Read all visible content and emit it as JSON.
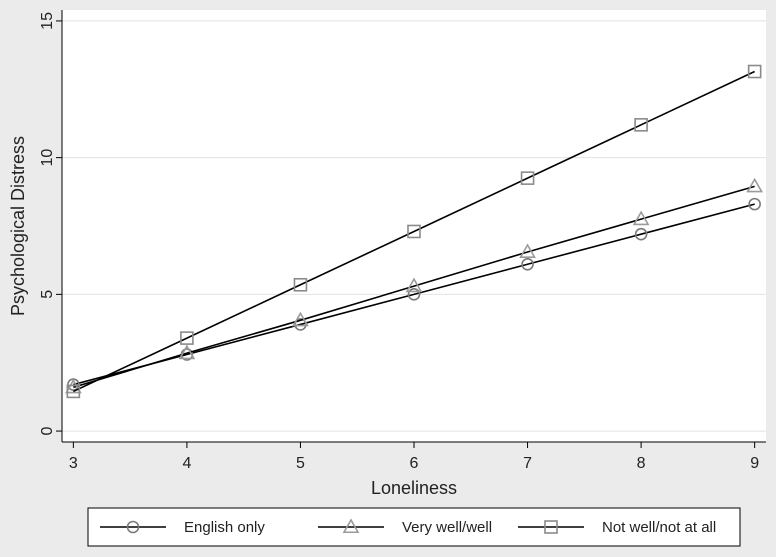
{
  "chart_data": {
    "type": "line",
    "title": "",
    "xlabel": "Loneliness",
    "ylabel": "Psychological Distress",
    "x": [
      3,
      4,
      5,
      6,
      7,
      8,
      9
    ],
    "xlim": [
      2.9,
      9.1
    ],
    "ylim": [
      -0.4,
      15.4
    ],
    "xticks": [
      3,
      4,
      5,
      6,
      7,
      8,
      9
    ],
    "yticks": [
      0,
      5,
      10,
      15
    ],
    "grid": "horizontal",
    "legend_position": "bottom",
    "series": [
      {
        "name": "English only",
        "marker": "circle",
        "color": "#000000",
        "marker_color": "#7a7a7a",
        "values": [
          1.7,
          2.8,
          3.9,
          5.0,
          6.1,
          7.2,
          8.3
        ]
      },
      {
        "name": "Very well/well",
        "marker": "triangle",
        "color": "#000000",
        "marker_color": "#9a9a9a",
        "values": [
          1.6,
          2.85,
          4.05,
          5.3,
          6.55,
          7.75,
          8.95
        ]
      },
      {
        "name": "Not well/not at all",
        "marker": "square",
        "color": "#000000",
        "marker_color": "#8a8a8a",
        "values": [
          1.45,
          3.4,
          5.35,
          7.3,
          9.25,
          11.2,
          13.15
        ]
      }
    ]
  }
}
